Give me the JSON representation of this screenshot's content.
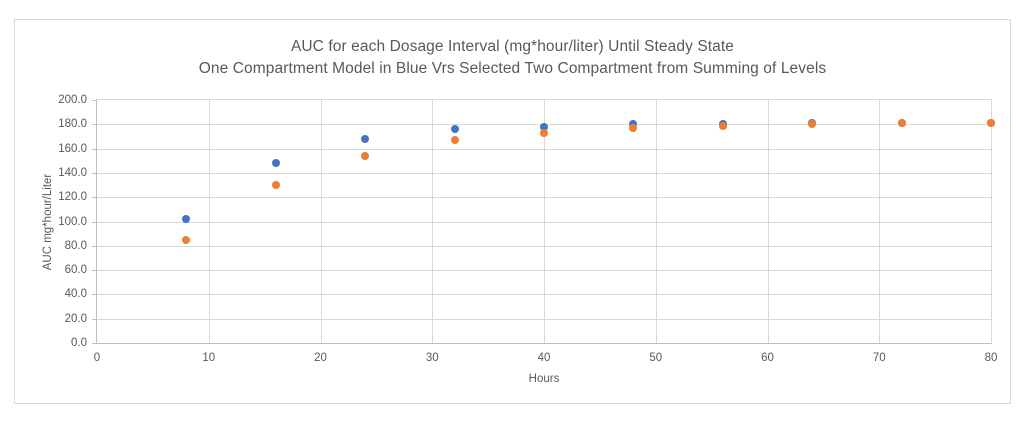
{
  "chart_data": {
    "type": "scatter",
    "title_line1": "AUC for each Dosage Interval (mg*hour/liter) Until Steady State",
    "title_line2": "One Compartment Model in Blue Vrs Selected Two Compartment from Summing of Levels",
    "xlabel": "Hours",
    "ylabel": "AUC mg*hour/Liter",
    "xlim": [
      0,
      80
    ],
    "ylim": [
      0,
      200
    ],
    "grid": true,
    "legend": "none",
    "x_ticks": [
      {
        "label": "0",
        "value": 0
      },
      {
        "label": "10",
        "value": 10
      },
      {
        "label": "20",
        "value": 20
      },
      {
        "label": "30",
        "value": 30
      },
      {
        "label": "40",
        "value": 40
      },
      {
        "label": "50",
        "value": 50
      },
      {
        "label": "60",
        "value": 60
      },
      {
        "label": "70",
        "value": 70
      },
      {
        "label": "80",
        "value": 80
      }
    ],
    "y_ticks": [
      {
        "label": "0.0",
        "value": 0
      },
      {
        "label": "20.0",
        "value": 20
      },
      {
        "label": "40.0",
        "value": 40
      },
      {
        "label": "60.0",
        "value": 60
      },
      {
        "label": "80.0",
        "value": 80
      },
      {
        "label": "100.0",
        "value": 100
      },
      {
        "label": "120.0",
        "value": 120
      },
      {
        "label": "140.0",
        "value": 140
      },
      {
        "label": "160.0",
        "value": 160
      },
      {
        "label": "180.0",
        "value": 180
      },
      {
        "label": "200.0",
        "value": 200
      }
    ],
    "x": [
      8,
      16,
      24,
      32,
      40,
      48,
      56,
      64,
      72,
      80
    ],
    "series": [
      {
        "name": "One Compartment Model (Blue)",
        "color": "#4472C4",
        "values": [
          102,
          148,
          168,
          176,
          178,
          180,
          180,
          181,
          181,
          181
        ]
      },
      {
        "name": "Selected Two Compartment from Summing of Levels (Orange)",
        "color": "#ED7D31",
        "values": [
          85,
          130,
          154,
          167,
          173,
          177,
          179,
          180,
          181,
          181
        ]
      }
    ],
    "colors": {
      "series_blue": "#4472C4",
      "series_orange": "#ED7D31",
      "gridline": "#d9d9d9",
      "axis_line": "#bfbfbf",
      "text": "#595959",
      "background": "#ffffff"
    }
  }
}
